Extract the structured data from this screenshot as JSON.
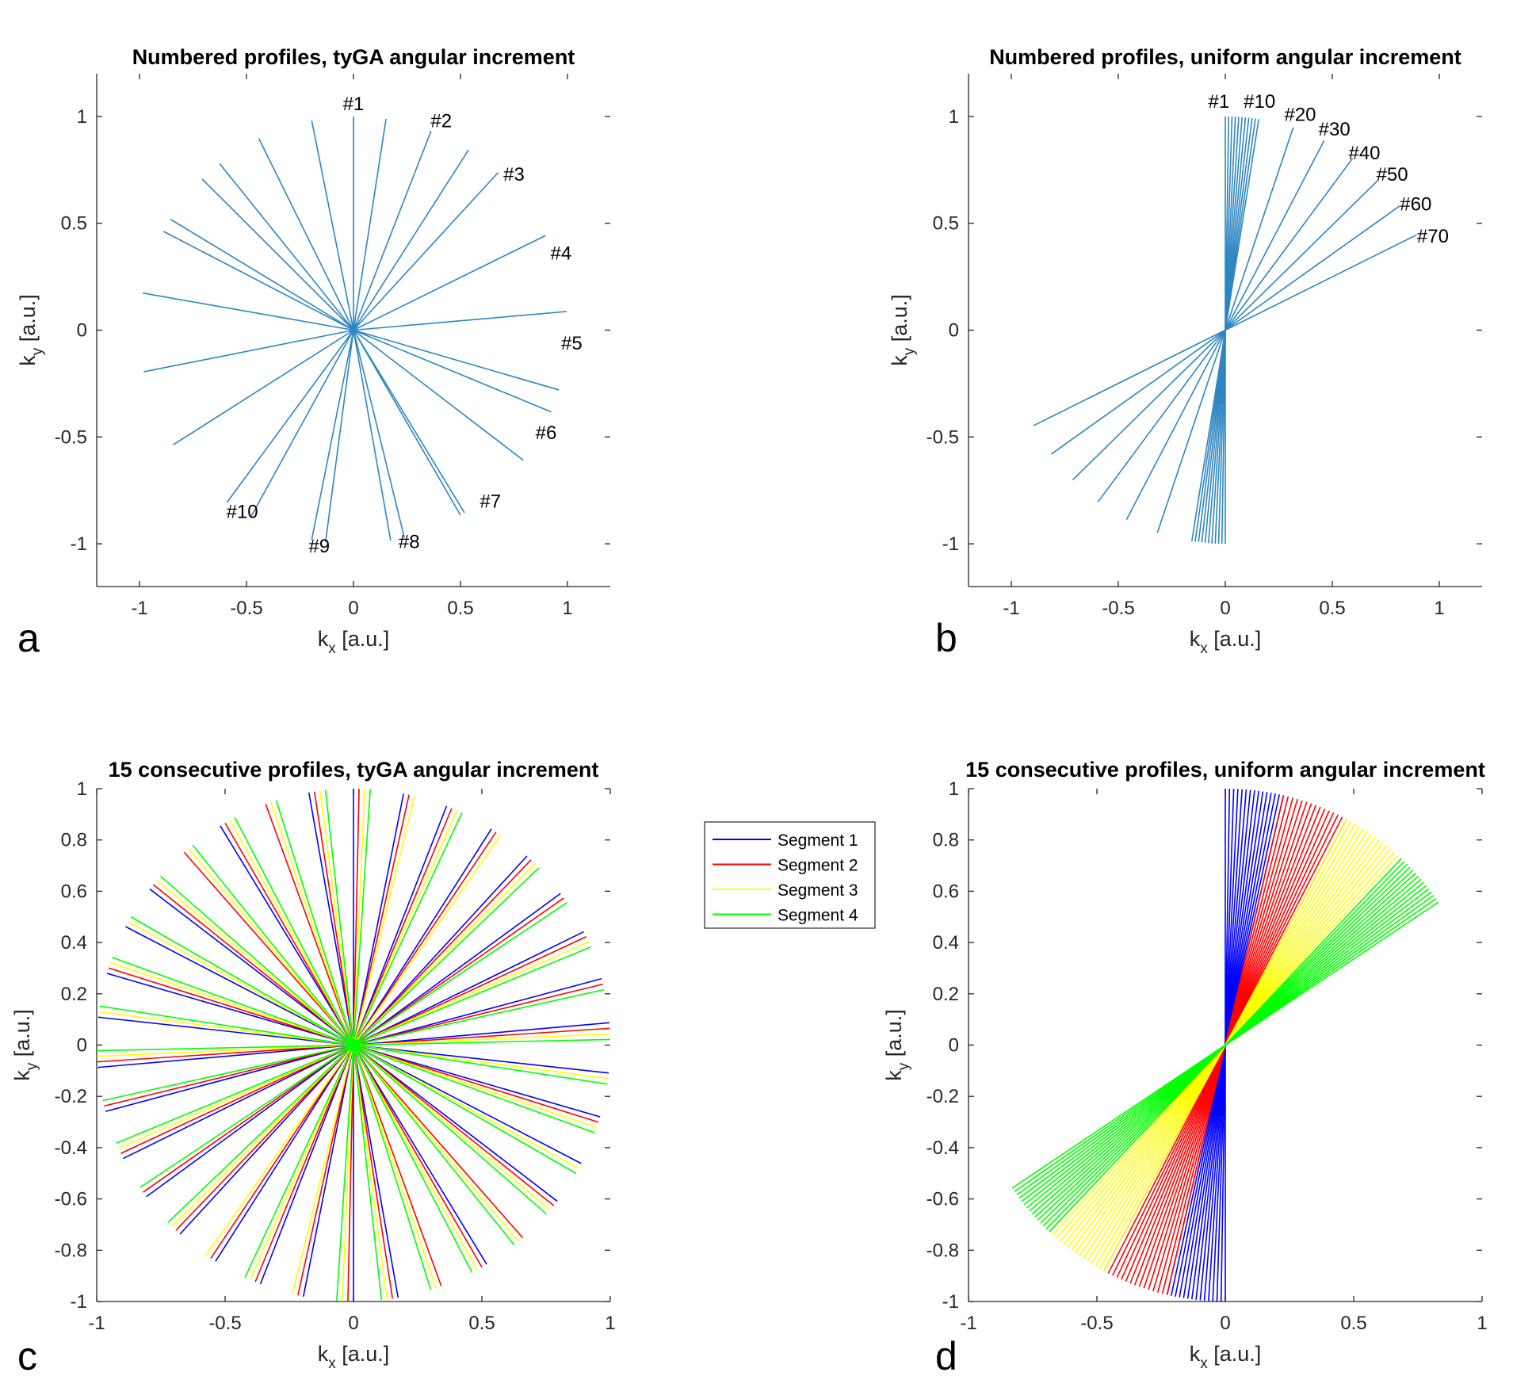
{
  "chart_data": [
    {
      "panel": "a",
      "type": "line",
      "title": "Numbered profiles, tyGA angular increment",
      "xlabel": "k",
      "xlabel_sub": "x",
      "xlabel_unit": " [a.u.]",
      "ylabel": "k",
      "ylabel_sub": "y",
      "ylabel_unit": " [a.u.]",
      "xlim": [
        -1.2,
        1.2
      ],
      "ylim": [
        -1.2,
        1.2
      ],
      "xticks": [
        -1,
        -0.5,
        0,
        0.5,
        1
      ],
      "yticks": [
        -1,
        -0.5,
        0,
        0.5,
        1
      ],
      "tick_labels_x": [
        "-1",
        "-0.5",
        "0",
        "0.5",
        "1"
      ],
      "tick_labels_y": [
        "-1",
        "-0.5",
        "0",
        "0.5",
        "1"
      ],
      "line_color": "#2e86c1",
      "profile_angles_deg": [
        90,
        68.75,
        47.5,
        26.25,
        5,
        -16.25,
        -37.5,
        -58.75,
        -80,
        -101.25
      ],
      "extra_profile_angles_deg": [
        81.25,
        57.5,
        116.25,
        101.25,
        128.75,
        148.75
      ],
      "annotations": [
        {
          "text": "#1",
          "x": 0.0,
          "y": 1.03
        },
        {
          "text": "#2",
          "x": 0.41,
          "y": 0.95
        },
        {
          "text": "#3",
          "x": 0.75,
          "y": 0.7
        },
        {
          "text": "#4",
          "x": 0.97,
          "y": 0.33
        },
        {
          "text": "#5",
          "x": 1.02,
          "y": -0.09
        },
        {
          "text": "#6",
          "x": 0.9,
          "y": -0.51
        },
        {
          "text": "#7",
          "x": 0.64,
          "y": -0.83
        },
        {
          "text": "#8",
          "x": 0.26,
          "y": -1.02
        },
        {
          "text": "#9",
          "x": -0.16,
          "y": -1.04
        },
        {
          "text": "#10",
          "x": -0.52,
          "y": -0.88
        }
      ],
      "panel_letter": "a"
    },
    {
      "panel": "b",
      "type": "line",
      "title": "Numbered profiles, uniform angular increment",
      "xlabel": "k",
      "xlabel_sub": "x",
      "xlabel_unit": " [a.u.]",
      "ylabel": "k",
      "ylabel_sub": "y",
      "ylabel_unit": " [a.u.]",
      "xlim": [
        -1.2,
        1.2
      ],
      "ylim": [
        -1.2,
        1.2
      ],
      "xticks": [
        -1,
        -0.5,
        0,
        0.5,
        1
      ],
      "yticks": [
        -1,
        -0.5,
        0,
        0.5,
        1
      ],
      "tick_labels_x": [
        "-1",
        "-0.5",
        "0",
        "0.5",
        "1"
      ],
      "tick_labels_y": [
        "-1",
        "-0.5",
        "0",
        "0.5",
        "1"
      ],
      "line_color": "#2e86c1",
      "profile_angles_deg": [
        90,
        89.1,
        88.2,
        87.3,
        86.4,
        85.5,
        84.6,
        83.7,
        82.8,
        81.9,
        81.0,
        72,
        63,
        54,
        45,
        36,
        27
      ],
      "annotations": [
        {
          "text": "#1",
          "x": -0.03,
          "y": 1.04
        },
        {
          "text": "#10",
          "x": 0.16,
          "y": 1.04
        },
        {
          "text": "#20",
          "x": 0.35,
          "y": 0.98
        },
        {
          "text": "#30",
          "x": 0.51,
          "y": 0.91
        },
        {
          "text": "#40",
          "x": 0.65,
          "y": 0.8
        },
        {
          "text": "#50",
          "x": 0.78,
          "y": 0.7
        },
        {
          "text": "#60",
          "x": 0.89,
          "y": 0.56
        },
        {
          "text": "#70",
          "x": 0.97,
          "y": 0.41
        }
      ],
      "panel_letter": "b"
    },
    {
      "panel": "c",
      "type": "line",
      "title": "15 consecutive profiles, tyGA angular increment",
      "xlabel": "k",
      "xlabel_sub": "x",
      "xlabel_unit": " [a.u.]",
      "ylabel": "k",
      "ylabel_sub": "y",
      "ylabel_unit": " [a.u.]",
      "xlim": [
        -1,
        1
      ],
      "ylim": [
        -1,
        1
      ],
      "xticks": [
        -1,
        -0.5,
        0,
        0.5,
        1
      ],
      "yticks": [
        -1,
        -0.8,
        -0.6,
        -0.4,
        -0.2,
        0,
        0.2,
        0.4,
        0.6,
        0.8,
        1
      ],
      "tick_labels_x": [
        "-1",
        "-0.5",
        "0",
        "0.5",
        "1"
      ],
      "tick_labels_y": [
        "-1",
        "-0.8",
        "-0.6",
        "-0.4",
        "-0.2",
        "0",
        "0.2",
        "0.4",
        "0.6",
        "0.8",
        "1"
      ],
      "series": [
        {
          "name": "Segment 1",
          "color": "#0000ff",
          "profiles": 15
        },
        {
          "name": "Segment 2",
          "color": "#ff0000",
          "profiles": 15
        },
        {
          "name": "Segment 3",
          "color": "#ffff00",
          "profiles": 15
        },
        {
          "name": "Segment 4",
          "color": "#00ff00",
          "profiles": 15
        }
      ],
      "angular_increment_deg": 21.25,
      "panel_letter": "c"
    },
    {
      "panel": "d",
      "type": "line",
      "title": "15 consecutive profiles, uniform angular increment",
      "xlabel": "k",
      "xlabel_sub": "x",
      "xlabel_unit": " [a.u.]",
      "ylabel": "k",
      "ylabel_sub": "y",
      "ylabel_unit": " [a.u.]",
      "xlim": [
        -1,
        1
      ],
      "ylim": [
        -1,
        1
      ],
      "xticks": [
        -1,
        -0.5,
        0,
        0.5,
        1
      ],
      "yticks": [
        -1,
        -0.8,
        -0.6,
        -0.4,
        -0.2,
        0,
        0.2,
        0.4,
        0.6,
        0.8,
        1
      ],
      "tick_labels_x": [
        "-1",
        "-0.5",
        "0",
        "0.5",
        "1"
      ],
      "tick_labels_y": [
        "-1",
        "-0.8",
        "-0.6",
        "-0.4",
        "-0.2",
        "0",
        "0.2",
        "0.4",
        "0.6",
        "0.8",
        "1"
      ],
      "series": [
        {
          "name": "Segment 1",
          "color": "#0000ff",
          "angle_start_deg": 90,
          "angle_end_deg": 76.9
        },
        {
          "name": "Segment 2",
          "color": "#ff0000",
          "angle_start_deg": 76.9,
          "angle_end_deg": 61.8
        },
        {
          "name": "Segment 3",
          "color": "#ffff00",
          "angle_start_deg": 61.8,
          "angle_end_deg": 46.7
        },
        {
          "name": "Segment 4",
          "color": "#00ff00",
          "angle_start_deg": 46.7,
          "angle_end_deg": 33.9
        }
      ],
      "lines_per_segment": 15,
      "panel_letter": "d"
    }
  ],
  "legend": {
    "placement": "between panels c and d",
    "entries": [
      {
        "label": "Segment 1",
        "color": "#0000ff"
      },
      {
        "label": "Segment 2",
        "color": "#ff0000"
      },
      {
        "label": "Segment 3",
        "color": "#ffff00"
      },
      {
        "label": "Segment 4",
        "color": "#00ff00"
      }
    ]
  }
}
